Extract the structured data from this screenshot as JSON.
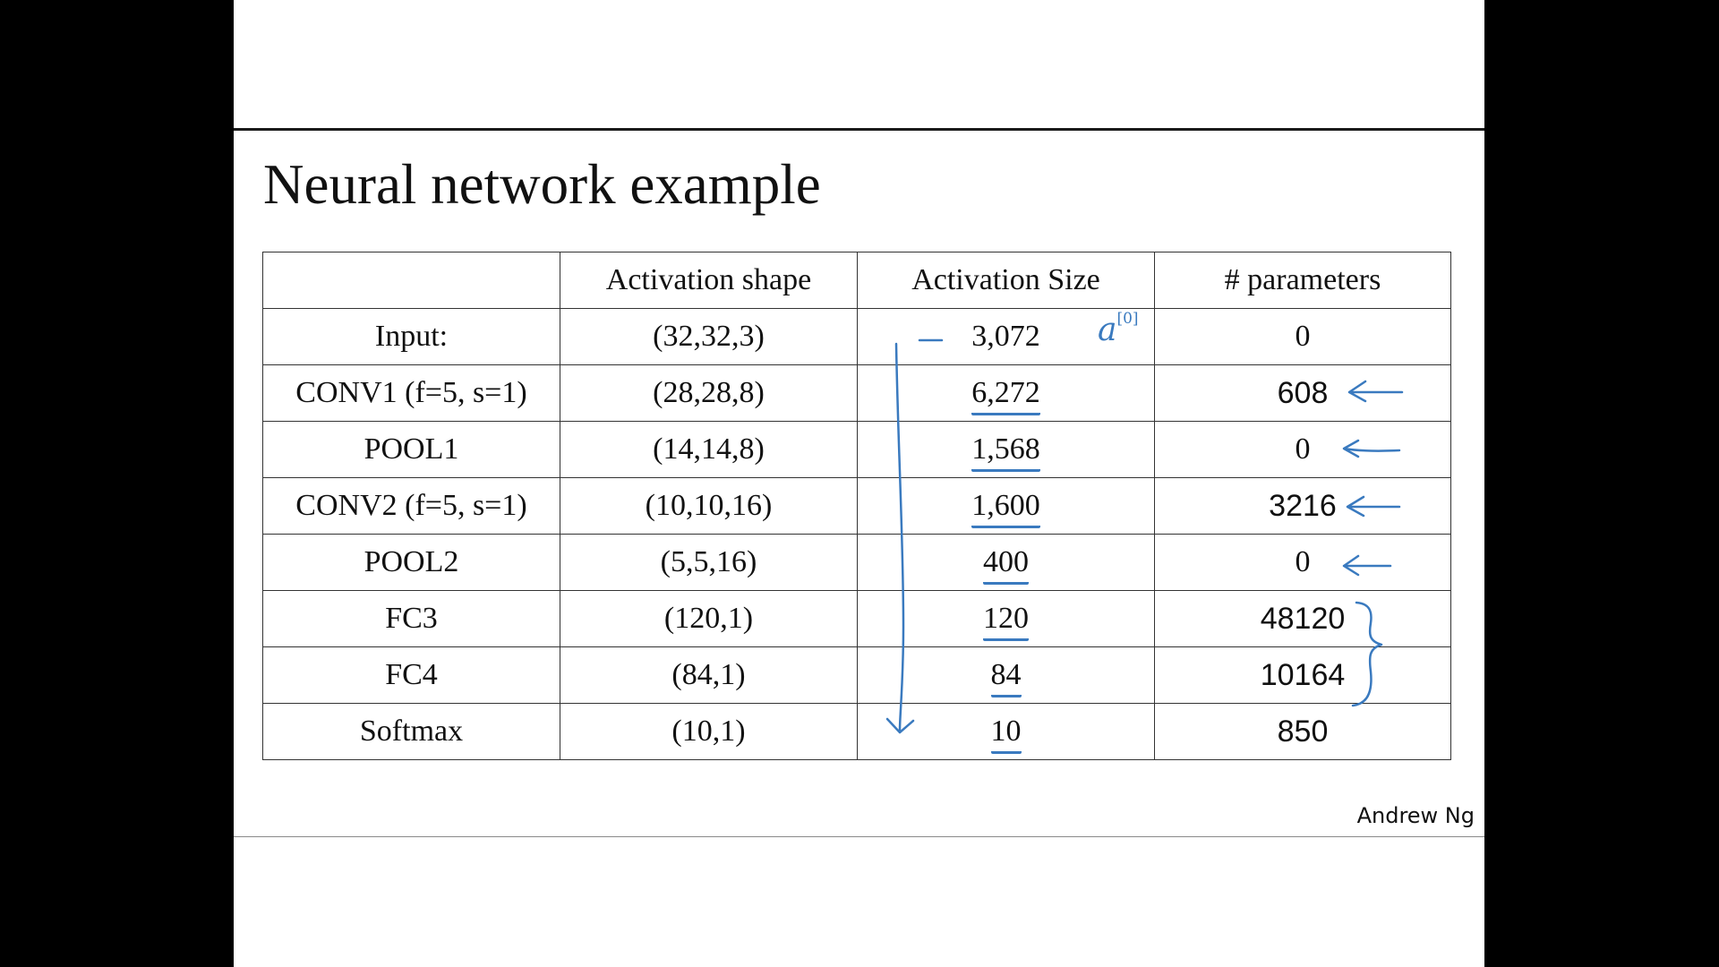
{
  "slide": {
    "title": "Neural network example",
    "credit": "Andrew Ng"
  },
  "table": {
    "headers": [
      "",
      "Activation shape",
      "Activation Size",
      "# parameters"
    ],
    "rows": [
      {
        "layer": "Input:",
        "shape": "(32,32,3)",
        "size": "3,072",
        "params": "0"
      },
      {
        "layer": "CONV1 (f=5, s=1)",
        "shape": "(28,28,8)",
        "size": "6,272",
        "params": "608"
      },
      {
        "layer": "POOL1",
        "shape": "(14,14,8)",
        "size": "1,568",
        "params": "0"
      },
      {
        "layer": "CONV2  (f=5, s=1)",
        "shape": "(10,10,16)",
        "size": "1,600",
        "params": "3216"
      },
      {
        "layer": "POOL2",
        "shape": "(5,5,16)",
        "size": "400",
        "params": "0"
      },
      {
        "layer": "FC3",
        "shape": "(120,1)",
        "size": "120",
        "params": "48120"
      },
      {
        "layer": "FC4",
        "shape": "(84,1)",
        "size": "84",
        "params": "10164"
      },
      {
        "layer": "Softmax",
        "shape": "(10,1)",
        "size": "10",
        "params": "850"
      }
    ]
  },
  "annotations": {
    "input_label": "a",
    "input_superscript": "[0]",
    "ink_color": "#3a7abf"
  }
}
